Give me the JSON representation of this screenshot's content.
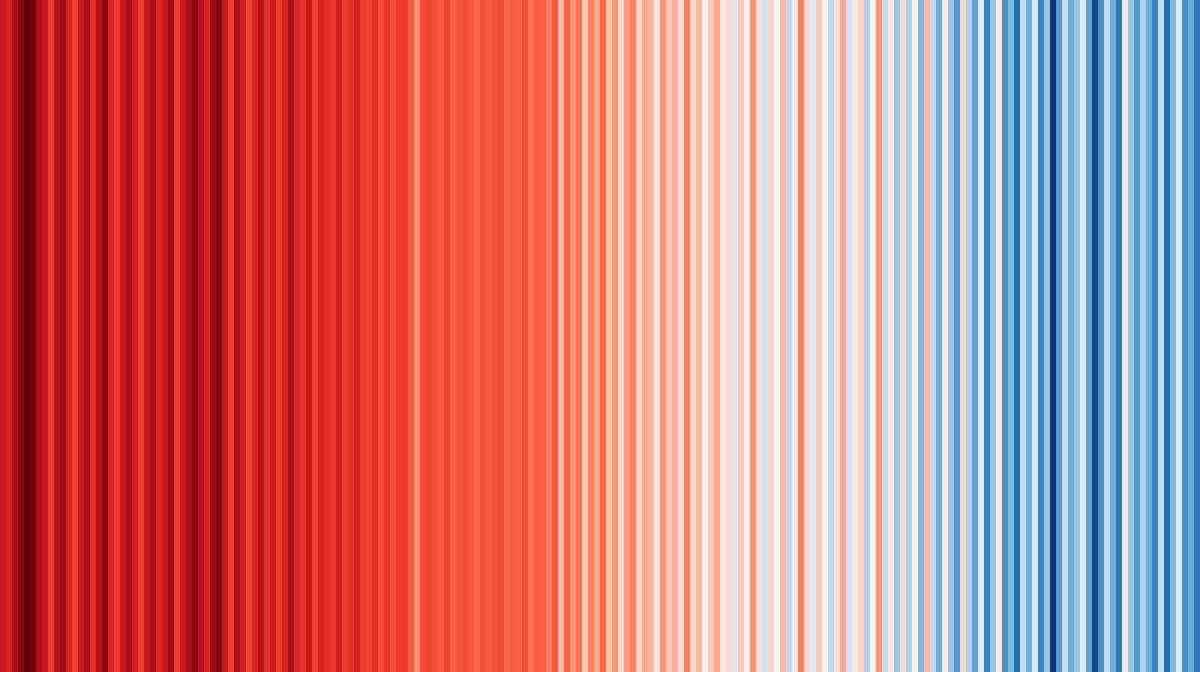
{
  "chart_data": {
    "type": "stripes",
    "vlim": [
      -1,
      1
    ],
    "colormap": [
      [
        -1,
        "#08306b"
      ],
      [
        -0.6,
        "#2171b5"
      ],
      [
        -0.3,
        "#6baed6"
      ],
      [
        -0.1,
        "#c6dbef"
      ],
      [
        0,
        "#f7f7f7"
      ],
      [
        0.2,
        "#fcbba1"
      ],
      [
        0.4,
        "#fb6a4a"
      ],
      [
        0.7,
        "#ef3b2c"
      ],
      [
        0.85,
        "#cb181d"
      ],
      [
        1,
        "#67000d"
      ]
    ],
    "values": [
      0.85,
      0.8,
      0.9,
      0.95,
      1.0,
      0.98,
      0.9,
      0.85,
      0.7,
      0.88,
      0.92,
      0.8,
      0.65,
      0.85,
      0.9,
      0.75,
      0.88,
      0.95,
      0.8,
      0.7,
      0.85,
      0.9,
      0.82,
      0.68,
      0.85,
      0.9,
      0.78,
      0.86,
      0.92,
      0.7,
      0.85,
      0.9,
      0.95,
      0.88,
      0.8,
      0.92,
      0.96,
      0.85,
      0.7,
      0.9,
      0.82,
      0.65,
      0.8,
      0.88,
      0.75,
      0.85,
      0.7,
      0.8,
      0.9,
      0.78,
      0.72,
      0.85,
      0.66,
      0.8,
      0.75,
      0.7,
      0.82,
      0.68,
      0.74,
      0.8,
      0.7,
      0.65,
      0.75,
      0.6,
      0.72,
      0.55,
      0.68,
      0.7,
      0.5,
      0.3,
      0.62,
      0.65,
      0.58,
      0.5,
      0.66,
      0.45,
      0.55,
      0.6,
      0.52,
      0.4,
      0.58,
      0.48,
      0.55,
      0.62,
      0.42,
      0.5,
      0.45,
      0.56,
      0.38,
      0.5,
      0.45,
      0.35,
      0.5,
      0.2,
      0.42,
      0.3,
      0.38,
      0.15,
      0.35,
      0.25,
      0.4,
      0.18,
      0.3,
      0.1,
      0.28,
      0.35,
      0.12,
      0.25,
      0.2,
      0.05,
      0.3,
      0.15,
      0.22,
      0.08,
      0.35,
      0.1,
      0.2,
      0.02,
      0.15,
      0.25,
      0.05,
      0.1,
      -0.05,
      0.15,
      0.02,
      0.3,
      0.08,
      -0.08,
      0.12,
      0.0,
      0.2,
      -0.1,
      0.05,
      0.35,
      0.1,
      -0.05,
      0.15,
      0.02,
      -0.12,
      0.08,
      0.25,
      -0.08,
      0.05,
      0.12,
      -0.15,
      0.02,
      0.3,
      -0.1,
      0.05,
      -0.2,
      0.1,
      -0.15,
      0.02,
      -0.25,
      0.2,
      -0.1,
      -0.3,
      0.05,
      -0.2,
      -0.4,
      0.1,
      -0.15,
      -0.35,
      -0.05,
      -0.5,
      -0.2,
      0.05,
      -0.45,
      -0.25,
      -0.6,
      -0.1,
      -0.3,
      -0.05,
      -0.5,
      -0.2,
      -0.95,
      -0.4,
      -0.1,
      -0.3,
      -0.2,
      -0.05,
      -0.35,
      -0.85,
      -0.45,
      -0.1,
      -0.3,
      -0.55,
      0.05,
      -0.2,
      -0.4,
      -0.15,
      -0.3,
      -0.5,
      -0.1,
      -0.6,
      -0.25,
      -0.05,
      -0.45,
      -0.3,
      -0.55
    ]
  }
}
